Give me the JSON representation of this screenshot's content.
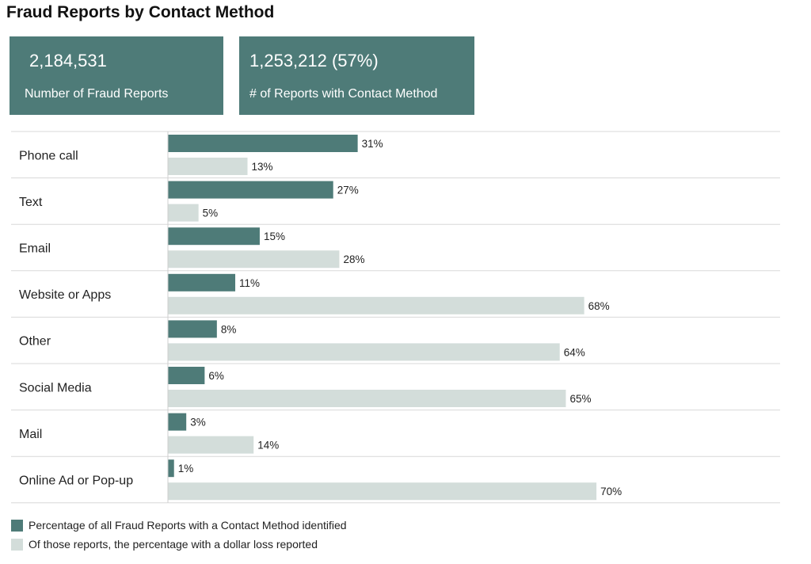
{
  "title": "Fraud Reports by Contact Method",
  "stats": [
    {
      "value": "2,184,531",
      "label": "Number of Fraud Reports"
    },
    {
      "value": "1,253,212 (57%)",
      "label": "# of Reports with Contact Method"
    }
  ],
  "colors": {
    "primary": "#4e7b78",
    "secondary": "#d3ddda",
    "card_bg": "#4e7b78"
  },
  "chart_data": {
    "type": "bar",
    "orientation": "horizontal",
    "categories": [
      "Phone call",
      "Text",
      "Email",
      "Website or Apps",
      "Other",
      "Social Media",
      "Mail",
      "Online Ad or Pop-up"
    ],
    "series": [
      {
        "name": "Percentage of all Fraud Reports with a Contact Method identified",
        "values": [
          31,
          27,
          15,
          11,
          8,
          6,
          3,
          1
        ],
        "labels": [
          "31%",
          "27%",
          "15%",
          "11%",
          "8%",
          "6%",
          "3%",
          "1%"
        ]
      },
      {
        "name": "Of those reports, the percentage with a dollar loss reported",
        "values": [
          13,
          5,
          28,
          68,
          64,
          65,
          14,
          70
        ],
        "labels": [
          "13%",
          "5%",
          "28%",
          "68%",
          "64%",
          "65%",
          "14%",
          "70%"
        ]
      }
    ],
    "xlim": [
      0,
      100
    ],
    "legend_position": "bottom-left"
  }
}
